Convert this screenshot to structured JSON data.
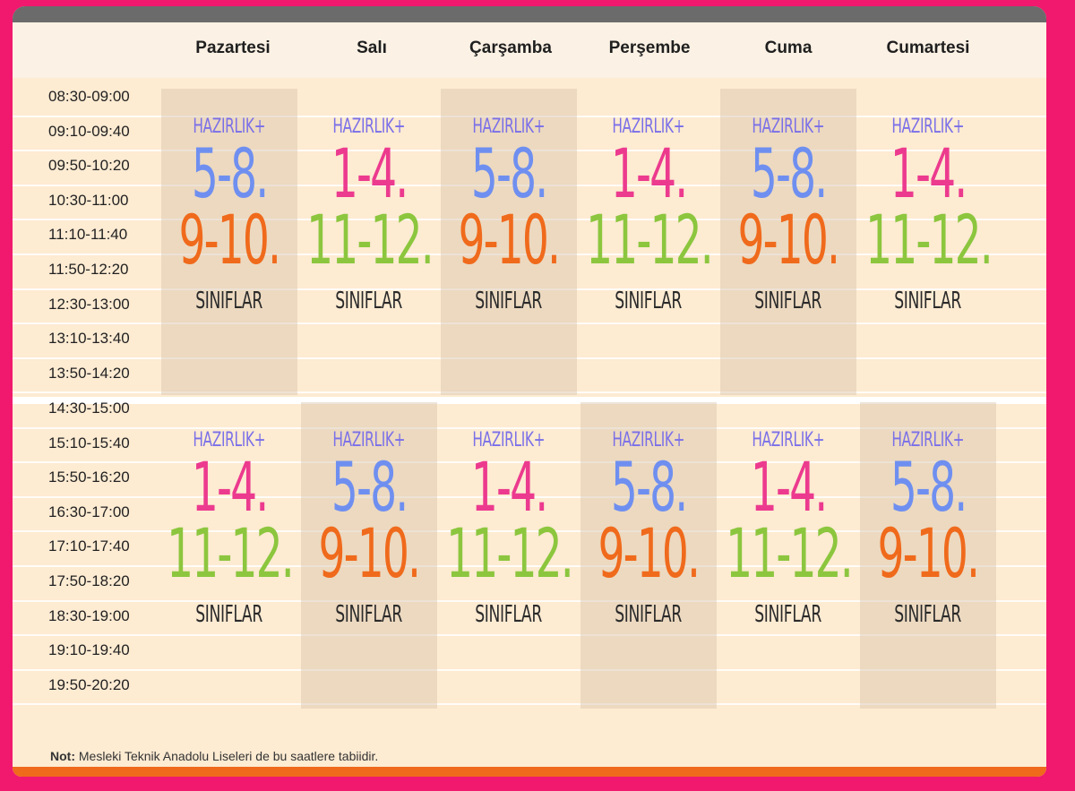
{
  "colors": {
    "background": "#f0196e",
    "card": "#fdebd2",
    "hazirlik": "#7a6fe8",
    "g1_4": "#ec3a8e",
    "g5_8": "#6f8ff0",
    "g9_10": "#f06a1c",
    "g11_12": "#8cc63e"
  },
  "days": [
    "Pazartesi",
    "Salı",
    "Çarşamba",
    "Perşembe",
    "Cuma",
    "Cumartesi"
  ],
  "morning_slots": [
    "08:30-09:00",
    "09:10-09:40",
    "09:50-10:20",
    "10:30-11:00",
    "11:10-11:40",
    "11:50-12:20",
    "12:30-13:00",
    "13:10-13:40",
    "13:50-14:20"
  ],
  "afternoon_slots": [
    "14:30-15:00",
    "15:10-15:40",
    "15:50-16:20",
    "16:30-17:00",
    "17:10-17:40",
    "17:50-18:20",
    "18:30-19:00",
    "19:10-19:40",
    "19:50-20:20"
  ],
  "morning_cells": [
    {
      "top": "HAZIRLIK+",
      "first": "5-8.",
      "second": "9-10.",
      "bottom": "SINIFLAR"
    },
    {
      "top": "HAZIRLIK+",
      "first": "1-4.",
      "second": "11-12.",
      "bottom": "SINIFLAR"
    },
    {
      "top": "HAZIRLIK+",
      "first": "5-8.",
      "second": "9-10.",
      "bottom": "SINIFLAR"
    },
    {
      "top": "HAZIRLIK+",
      "first": "1-4.",
      "second": "11-12.",
      "bottom": "SINIFLAR"
    },
    {
      "top": "HAZIRLIK+",
      "first": "5-8.",
      "second": "9-10.",
      "bottom": "SINIFLAR"
    },
    {
      "top": "HAZIRLIK+",
      "first": "1-4.",
      "second": "11-12.",
      "bottom": "SINIFLAR"
    }
  ],
  "afternoon_cells": [
    {
      "top": "HAZIRLIK+",
      "first": "1-4.",
      "second": "11-12.",
      "bottom": "SINIFLAR"
    },
    {
      "top": "HAZIRLIK+",
      "first": "5-8.",
      "second": "9-10.",
      "bottom": "SINIFLAR"
    },
    {
      "top": "HAZIRLIK+",
      "first": "1-4.",
      "second": "11-12.",
      "bottom": "SINIFLAR"
    },
    {
      "top": "HAZIRLIK+",
      "first": "5-8.",
      "second": "9-10.",
      "bottom": "SINIFLAR"
    },
    {
      "top": "HAZIRLIK+",
      "first": "1-4.",
      "second": "11-12.",
      "bottom": "SINIFLAR"
    },
    {
      "top": "HAZIRLIK+",
      "first": "5-8.",
      "second": "9-10.",
      "bottom": "SINIFLAR"
    }
  ],
  "note": {
    "label": "Not:",
    "text": " Mesleki Teknik Anadolu Liseleri de bu saatlere tabiidir."
  }
}
